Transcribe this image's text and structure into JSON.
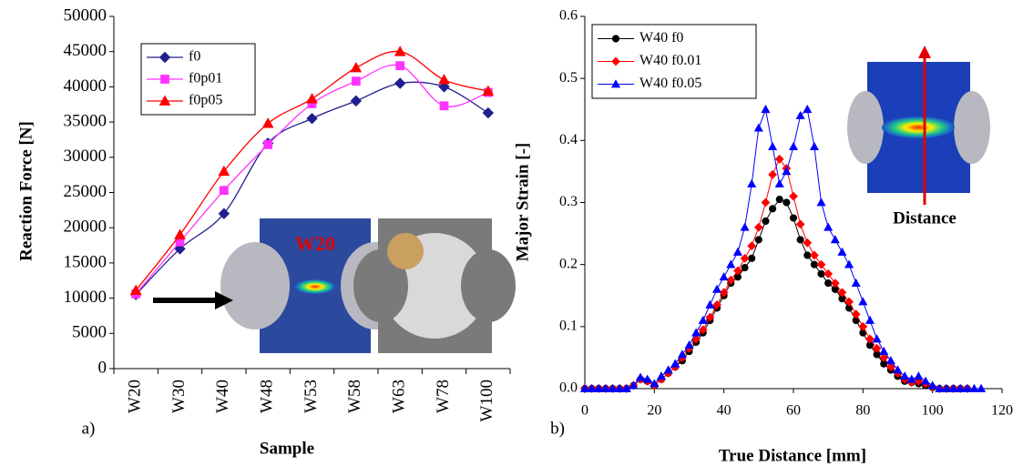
{
  "chart_data": [
    {
      "type": "line",
      "smooth": true,
      "panel_label": "a)",
      "xlabel": "Sample",
      "ylabel": "Reaction Force [N]",
      "categories": [
        "W20",
        "W30",
        "W40",
        "W48",
        "W53",
        "W58",
        "W63",
        "W78",
        "W100"
      ],
      "ylim": [
        0,
        50000
      ],
      "yticks": [
        0,
        5000,
        10000,
        15000,
        20000,
        25000,
        30000,
        35000,
        40000,
        45000,
        50000
      ],
      "grid": false,
      "legend": "upper left",
      "annotations": [
        "W20"
      ],
      "series": [
        {
          "name": "f0",
          "color": "#1f1f8f",
          "marker": "diamond",
          "values": [
            10500,
            17000,
            22000,
            32000,
            35500,
            38000,
            40500,
            40000,
            36300
          ]
        },
        {
          "name": "f0p01",
          "color": "#ff33ff",
          "marker": "square",
          "values": [
            10600,
            18000,
            25300,
            31800,
            37600,
            40800,
            43000,
            37300,
            39200
          ]
        },
        {
          "name": "f0p05",
          "color": "#ff0000",
          "marker": "triangle",
          "values": [
            11100,
            19000,
            28000,
            34800,
            38300,
            42700,
            45000,
            41000,
            39400
          ]
        }
      ]
    },
    {
      "type": "line",
      "smooth": false,
      "panel_label": "b)",
      "xlabel": "True Distance [mm]",
      "ylabel": "Major Strain [-]",
      "x": [
        0,
        2,
        4,
        6,
        8,
        10,
        12,
        14,
        16,
        18,
        20,
        22,
        24,
        26,
        28,
        30,
        32,
        34,
        36,
        38,
        40,
        42,
        44,
        46,
        48,
        50,
        52,
        54,
        56,
        58,
        60,
        62,
        64,
        66,
        68,
        70,
        72,
        74,
        76,
        78,
        80,
        82,
        84,
        86,
        88,
        90,
        92,
        94,
        96,
        98,
        100,
        102,
        104,
        106,
        108,
        110,
        112,
        114
      ],
      "xlim": [
        0,
        120
      ],
      "xticks": [
        0,
        20,
        40,
        60,
        80,
        100,
        120
      ],
      "ylim": [
        0,
        0.6
      ],
      "yticks": [
        {
          "value": 0,
          "label": "0.0"
        },
        0.1,
        0.2,
        0.3,
        0.4,
        0.5,
        0.6
      ],
      "grid": false,
      "legend": "upper left",
      "annotations": [
        "Distance"
      ],
      "series": [
        {
          "name": "W40 f0",
          "color": "#000000",
          "marker": "circle",
          "values": [
            0,
            0,
            0,
            0,
            0,
            0,
            0,
            0.005,
            0.015,
            0.012,
            0.005,
            0.015,
            0.025,
            0.035,
            0.045,
            0.06,
            0.075,
            0.09,
            0.11,
            0.13,
            0.15,
            0.17,
            0.18,
            0.195,
            0.21,
            0.24,
            0.27,
            0.29,
            0.305,
            0.3,
            0.275,
            0.24,
            0.215,
            0.2,
            0.185,
            0.17,
            0.16,
            0.145,
            0.13,
            0.11,
            0.09,
            0.07,
            0.055,
            0.04,
            0.03,
            0.02,
            0.012,
            0.01,
            0.008,
            0.005,
            0.002,
            0,
            0,
            0,
            0,
            0,
            null,
            null
          ]
        },
        {
          "name": "W40 f0.01",
          "color": "#ff0000",
          "marker": "diamond",
          "values": [
            0,
            0,
            0,
            0,
            0,
            0,
            0,
            0.005,
            0.015,
            0.012,
            0.005,
            0.015,
            0.025,
            0.035,
            0.05,
            0.065,
            0.08,
            0.095,
            0.115,
            0.135,
            0.155,
            0.175,
            0.19,
            0.21,
            0.23,
            0.26,
            0.3,
            0.345,
            0.37,
            0.355,
            0.31,
            0.265,
            0.235,
            0.215,
            0.2,
            0.185,
            0.17,
            0.155,
            0.14,
            0.12,
            0.1,
            0.08,
            0.065,
            0.05,
            0.035,
            0.025,
            0.015,
            0.01,
            0.012,
            0.008,
            0.003,
            0,
            0,
            0,
            0,
            0,
            null,
            null
          ]
        },
        {
          "name": "W40 f0.05",
          "color": "#0000ff",
          "marker": "triangle",
          "values": [
            0,
            0,
            0,
            0,
            0,
            0,
            0,
            0.005,
            0.018,
            0.015,
            0.008,
            0.02,
            0.03,
            0.04,
            0.055,
            0.07,
            0.09,
            0.11,
            0.135,
            0.16,
            0.18,
            0.2,
            0.22,
            0.26,
            0.33,
            0.42,
            0.45,
            0.39,
            0.33,
            0.35,
            0.39,
            0.44,
            0.45,
            0.39,
            0.3,
            0.26,
            0.24,
            0.22,
            0.2,
            0.17,
            0.14,
            0.11,
            0.08,
            0.06,
            0.045,
            0.03,
            0.02,
            0.015,
            0.02,
            0.012,
            0.005,
            0,
            0,
            0,
            0,
            0,
            0,
            0
          ]
        }
      ]
    }
  ]
}
